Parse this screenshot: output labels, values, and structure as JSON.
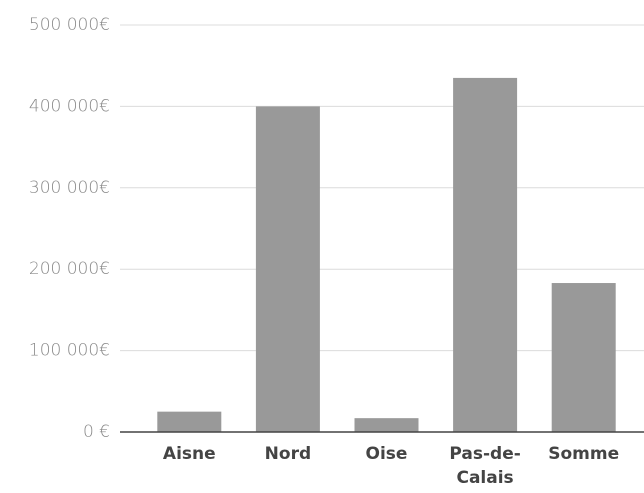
{
  "chart_data": {
    "type": "bar",
    "categories": [
      "Aisne",
      "Nord",
      "Oise",
      "Pas-de-Calais",
      "Somme"
    ],
    "values": [
      25000,
      400000,
      17000,
      435000,
      183000
    ],
    "color": "#999999",
    "ylim": [
      0,
      500000
    ],
    "yticks": [
      {
        "value": 0,
        "label": "0 €"
      },
      {
        "value": 100000,
        "label": "100 000€"
      },
      {
        "value": 200000,
        "label": "200 000€"
      },
      {
        "value": 300000,
        "label": "300 000€"
      },
      {
        "value": 400000,
        "label": "400 000€"
      },
      {
        "value": 500000,
        "label": "500 000€"
      }
    ],
    "grid": true
  }
}
